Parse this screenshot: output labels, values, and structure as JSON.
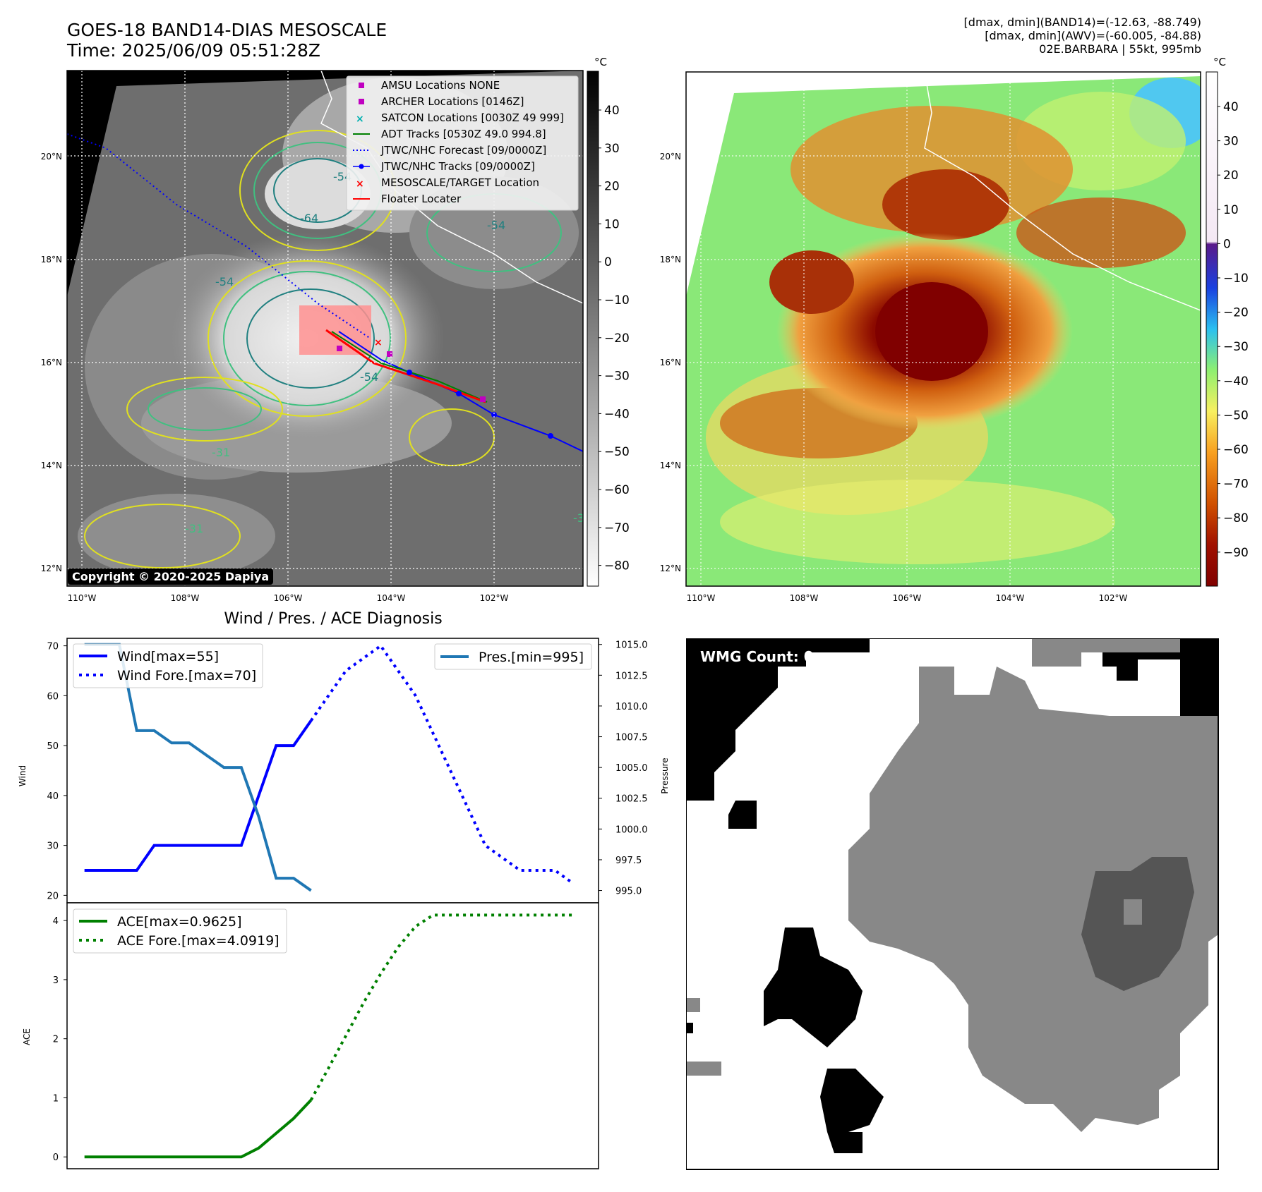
{
  "header": {
    "title_line1": "GOES-18 BAND14-DIAS MESOSCALE",
    "title_line2": "Time: 2025/06/09 05:51:28Z",
    "info_line1": "[dmax, dmin](BAND14)=(-12.63, -88.749)",
    "info_line2": "[dmax, dmin](AWV)=(-60.005, -84.88)",
    "info_line3": "02E.BARBARA | 55kt, 995mb",
    "copyright": "Copyright © 2020-2025 Dapiya"
  },
  "map": {
    "lat_labels": [
      "20°N",
      "18°N",
      "16°N",
      "14°N",
      "12°N"
    ],
    "lon_labels": [
      "110°W",
      "108°W",
      "106°W",
      "104°W",
      "102°W"
    ],
    "contour_labels": [
      "-54",
      "-64",
      "-54",
      "-54",
      "-31",
      "-31",
      "-31",
      "-54"
    ],
    "colorbar_unit": "°C",
    "gray_colorbar_ticks": [
      "40",
      "30",
      "20",
      "10",
      "0",
      "−10",
      "−20",
      "−30",
      "−40",
      "−50",
      "−60",
      "−70",
      "−80"
    ],
    "color_colorbar_ticks": [
      "40",
      "30",
      "20",
      "10",
      "0",
      "−10",
      "−20",
      "−30",
      "−40",
      "−50",
      "−60",
      "−70",
      "−80",
      "−90"
    ],
    "legend": [
      {
        "label": "AMSU Locations NONE",
        "color": "#c000c0",
        "marker": "square"
      },
      {
        "label": "ARCHER Locations [0146Z]",
        "color": "#c000c0",
        "marker": "square"
      },
      {
        "label": "SATCON Locations [0030Z 49 999]",
        "color": "#00b0b0",
        "marker": "x"
      },
      {
        "label": "ADT Tracks [0530Z 49.0 994.8]",
        "color": "#008000",
        "marker": "line"
      },
      {
        "label": "JTWC/NHC Forecast [09/0000Z]",
        "color": "#0000ff",
        "marker": "dotted"
      },
      {
        "label": "JTWC/NHC Tracks [09/0000Z]",
        "color": "#0000ff",
        "marker": "line-dot"
      },
      {
        "label": "MESOSCALE/TARGET Location",
        "color": "#ff0000",
        "marker": "x"
      },
      {
        "label": "Floater Locater",
        "color": "#ff0000",
        "marker": "line"
      }
    ]
  },
  "wmg": {
    "label": "WMG Count: 0"
  },
  "chart_data": [
    {
      "type": "line",
      "title": "Wind / Pres. / ACE Diagnosis",
      "ylabel": "Wind",
      "ylabel_right": "Pressure",
      "ylim": [
        18.5,
        71.5
      ],
      "ylim_right": [
        994.0,
        1015.5
      ],
      "yticks": [
        20,
        30,
        40,
        50,
        60,
        70
      ],
      "yticks_right": [
        "995.0",
        "997.5",
        "1000.0",
        "1002.5",
        "1005.0",
        "1007.5",
        "1010.0",
        "1012.5",
        "1015.0"
      ],
      "x": [
        0,
        1,
        2,
        3,
        4,
        5,
        6,
        7,
        8,
        9,
        10,
        11,
        12,
        13,
        14,
        15,
        16,
        17,
        18,
        19,
        20,
        21,
        22,
        23,
        24,
        25,
        26,
        27,
        28
      ],
      "series": [
        {
          "name": "Wind[max=55]",
          "color": "#0000ff",
          "style": "solid",
          "axis": "left",
          "x": [
            0,
            1,
            2,
            3,
            4,
            5,
            6,
            7,
            8,
            9,
            10,
            11,
            12,
            13
          ],
          "values": [
            25,
            25,
            25,
            25,
            30,
            30,
            30,
            30,
            30,
            30,
            40,
            50,
            50,
            55
          ]
        },
        {
          "name": "Wind Fore.[max=70]",
          "color": "#0000ff",
          "style": "dotted",
          "axis": "left",
          "x": [
            13,
            14,
            15,
            16,
            17,
            18,
            19,
            20,
            21,
            22,
            23,
            24,
            25,
            26,
            27,
            28
          ],
          "values": [
            55,
            60,
            65,
            67.5,
            70,
            65,
            60,
            52.5,
            45,
            37.5,
            30,
            27.5,
            25,
            25,
            25,
            22.5
          ]
        },
        {
          "name": "Pres.[min=995]",
          "color": "#1f77b4",
          "style": "solid",
          "axis": "right",
          "x": [
            0,
            1,
            2,
            3,
            4,
            5,
            6,
            7,
            8,
            9,
            10,
            11,
            12,
            13
          ],
          "values": [
            1015,
            1015,
            1015,
            1008,
            1008,
            1007,
            1007,
            1006,
            1005,
            1005,
            1001,
            996,
            996,
            995
          ]
        }
      ],
      "legend": [
        "upper-left",
        "upper-right"
      ]
    },
    {
      "type": "line",
      "ylabel": "ACE",
      "ylim": [
        -0.2,
        4.3
      ],
      "yticks": [
        0,
        1,
        2,
        3,
        4
      ],
      "series": [
        {
          "name": "ACE[max=0.9625]",
          "color": "#008000",
          "style": "solid",
          "x": [
            0,
            1,
            2,
            3,
            4,
            5,
            6,
            7,
            8,
            9,
            10,
            11,
            12,
            13
          ],
          "values": [
            0,
            0,
            0,
            0,
            0,
            0,
            0,
            0,
            0,
            0,
            0.15,
            0.4,
            0.65,
            0.9625
          ]
        },
        {
          "name": "ACE Fore.[max=4.0919]",
          "color": "#008000",
          "style": "dotted",
          "x": [
            13,
            14,
            15,
            16,
            17,
            18,
            19,
            20,
            21,
            22,
            23,
            24,
            25,
            26,
            27,
            28
          ],
          "values": [
            0.9625,
            1.5,
            2.05,
            2.6,
            3.1,
            3.55,
            3.9,
            4.0919,
            4.0919,
            4.0919,
            4.0919,
            4.0919,
            4.0919,
            4.0919,
            4.0919,
            4.0919
          ]
        }
      ],
      "legend": "upper-left"
    }
  ]
}
